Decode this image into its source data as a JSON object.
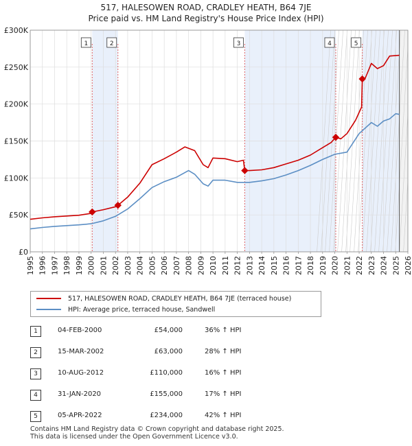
{
  "title_line1": "517, HALESOWEN ROAD, CRADLEY HEATH, B64 7JE",
  "title_line2": "Price paid vs. HM Land Registry's House Price Index (HPI)",
  "chart_data": {
    "type": "line",
    "ylim": [
      0,
      300000
    ],
    "xlim": [
      1995,
      2026
    ],
    "yticks": [
      {
        "v": 0,
        "label": "£0"
      },
      {
        "v": 50000,
        "label": "£50K"
      },
      {
        "v": 100000,
        "label": "£100K"
      },
      {
        "v": 150000,
        "label": "£150K"
      },
      {
        "v": 200000,
        "label": "£200K"
      },
      {
        "v": 250000,
        "label": "£250K"
      },
      {
        "v": 300000,
        "label": "£300K"
      }
    ],
    "xticks": [
      1995,
      1996,
      1997,
      1998,
      1999,
      2000,
      2001,
      2002,
      2003,
      2004,
      2005,
      2006,
      2007,
      2008,
      2009,
      2010,
      2011,
      2012,
      2013,
      2014,
      2015,
      2016,
      2017,
      2018,
      2019,
      2020,
      2021,
      2022,
      2023,
      2024,
      2025,
      2026
    ],
    "shaded_spans": [
      [
        2000.09,
        2002.2
      ],
      [
        2012.61,
        2020.08
      ],
      [
        2022.26,
        2025.3
      ]
    ],
    "future_start": 2025.3,
    "series": [
      {
        "name": "517, HALESOWEN ROAD, CRADLEY HEATH, B64 7JE (terraced house)",
        "color": "#cc0000",
        "x": [
          1995,
          1996,
          1997,
          1998,
          1999,
          2000,
          2000.09,
          2001,
          2002,
          2002.2,
          2003,
          2004,
          2005,
          2006,
          2007,
          2007.7,
          2008.5,
          2009.2,
          2009.6,
          2010,
          2011,
          2012,
          2012.5,
          2012.61,
          2013,
          2014,
          2015,
          2016,
          2017,
          2018,
          2019,
          2019.7,
          2020.08,
          2020.5,
          2021,
          2021.7,
          2022.2,
          2022.26,
          2022.5,
          2023,
          2023.5,
          2024,
          2024.5,
          2025.3
        ],
        "y": [
          44000,
          46000,
          47500,
          48500,
          49500,
          52000,
          54000,
          57000,
          61000,
          63000,
          74000,
          93000,
          118000,
          126000,
          135000,
          142000,
          137000,
          118000,
          114000,
          127000,
          126000,
          122000,
          124000,
          110000,
          110000,
          111000,
          114000,
          119000,
          124000,
          131000,
          141000,
          148000,
          155000,
          153000,
          160000,
          178000,
          196000,
          234000,
          235000,
          255000,
          248000,
          252000,
          265000,
          266000
        ]
      },
      {
        "name": "HPI: Average price, terraced house, Sandwell",
        "color": "#5b8ec4",
        "x": [
          1995,
          1996,
          1997,
          1998,
          1999,
          2000,
          2001,
          2002,
          2003,
          2004,
          2005,
          2006,
          2007,
          2008,
          2008.5,
          2009.2,
          2009.6,
          2010,
          2011,
          2012,
          2013,
          2014,
          2015,
          2016,
          2017,
          2018,
          2019,
          2020,
          2021,
          2022,
          2023,
          2023.5,
          2024,
          2024.5,
          2025,
          2025.3
        ],
        "y": [
          31000,
          33000,
          34500,
          35500,
          36500,
          38000,
          42000,
          48000,
          58000,
          72000,
          87000,
          95000,
          101000,
          110000,
          105000,
          92000,
          89000,
          97000,
          97000,
          94000,
          94000,
          96000,
          99000,
          104000,
          110000,
          117000,
          125000,
          132000,
          135000,
          160000,
          175000,
          170000,
          177000,
          180000,
          187000,
          186000
        ]
      }
    ],
    "sales": [
      {
        "num": "1",
        "x": 2000.09,
        "price": 54000
      },
      {
        "num": "2",
        "x": 2002.2,
        "price": 63000
      },
      {
        "num": "3",
        "x": 2012.61,
        "price": 110000
      },
      {
        "num": "4",
        "x": 2020.08,
        "price": 155000
      },
      {
        "num": "5",
        "x": 2022.26,
        "price": 234000
      }
    ]
  },
  "legend": {
    "red_label": "517, HALESOWEN ROAD, CRADLEY HEATH, B64 7JE (terraced house)",
    "blue_label": "HPI: Average price, terraced house, Sandwell"
  },
  "sales_table": [
    {
      "num": "1",
      "date": "04-FEB-2000",
      "price": "£54,000",
      "hpi": "36% ↑ HPI"
    },
    {
      "num": "2",
      "date": "15-MAR-2002",
      "price": "£63,000",
      "hpi": "28% ↑ HPI"
    },
    {
      "num": "3",
      "date": "10-AUG-2012",
      "price": "£110,000",
      "hpi": "16% ↑ HPI"
    },
    {
      "num": "4",
      "date": "31-JAN-2020",
      "price": "£155,000",
      "hpi": "17% ↑ HPI"
    },
    {
      "num": "5",
      "date": "05-APR-2022",
      "price": "£234,000",
      "hpi": "42% ↑ HPI"
    }
  ],
  "footer_line1": "Contains HM Land Registry data © Crown copyright and database right 2025.",
  "footer_line2": "This data is licensed under the Open Government Licence v3.0."
}
